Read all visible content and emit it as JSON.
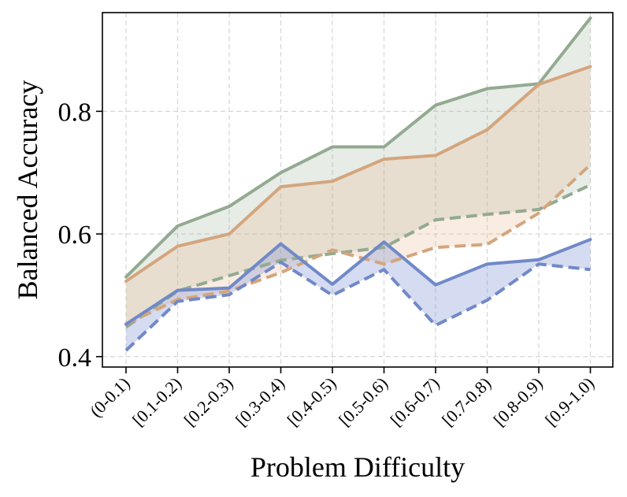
{
  "chart_data": {
    "type": "line",
    "title": "",
    "xlabel": "Problem Difficulty",
    "ylabel": "Balanced Accuracy",
    "categories": [
      "(0-0.1)",
      "[0.1-0.2)",
      "[0.2-0.3)",
      "[0.3-0.4)",
      "[0.4-0.5)",
      "[0.5-0.6)",
      "[0.6-0.7)",
      "[0.7-0.8)",
      "[0.8-0.9)",
      "[0.9-1.0)"
    ],
    "ylim": [
      0.383,
      0.961
    ],
    "yticks": [
      0.4,
      0.6,
      0.8
    ],
    "ytick_labels": [
      "0.4",
      "0.6",
      "0.8"
    ],
    "grid": true,
    "legend": "none",
    "series": [
      {
        "name": "green-solid",
        "style": "solid",
        "color": "#93aa91",
        "values": [
          0.53,
          0.613,
          0.645,
          0.7,
          0.742,
          0.742,
          0.81,
          0.837,
          0.845,
          0.952
        ]
      },
      {
        "name": "green-dashed",
        "style": "dashed",
        "color": "#93aa91",
        "values": [
          0.448,
          0.507,
          0.532,
          0.557,
          0.568,
          0.578,
          0.623,
          0.632,
          0.64,
          0.68
        ]
      },
      {
        "name": "orange-solid",
        "style": "solid",
        "color": "#d4a57c",
        "values": [
          0.523,
          0.58,
          0.6,
          0.677,
          0.686,
          0.722,
          0.728,
          0.77,
          0.844,
          0.873
        ]
      },
      {
        "name": "orange-dashed",
        "style": "dashed",
        "color": "#d4a57c",
        "values": [
          0.453,
          0.493,
          0.507,
          0.537,
          0.574,
          0.551,
          0.578,
          0.583,
          0.634,
          0.713
        ]
      },
      {
        "name": "blue-solid",
        "style": "solid",
        "color": "#7089c8",
        "values": [
          0.453,
          0.508,
          0.512,
          0.584,
          0.518,
          0.587,
          0.517,
          0.551,
          0.558,
          0.591
        ]
      },
      {
        "name": "blue-dashed",
        "style": "dashed",
        "color": "#7089c8",
        "values": [
          0.41,
          0.49,
          0.501,
          0.554,
          0.5,
          0.542,
          0.451,
          0.492,
          0.551,
          0.542
        ]
      }
    ],
    "bands": [
      {
        "name": "green-band",
        "upper": "green-solid",
        "lower": "green-dashed",
        "color": "#93aa91",
        "opacity": 0.22
      },
      {
        "name": "orange-band",
        "upper": "orange-solid",
        "lower": "orange-dashed",
        "color": "#e9b48a",
        "opacity": 0.25
      },
      {
        "name": "blue-band",
        "upper": "blue-solid",
        "lower": "blue-dashed",
        "color": "#8797d4",
        "opacity": 0.35
      }
    ]
  }
}
